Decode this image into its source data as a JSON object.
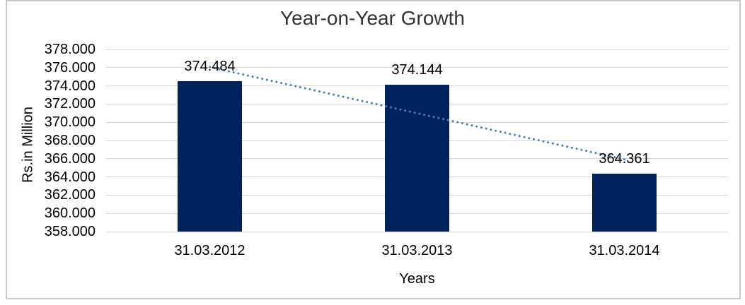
{
  "page": {
    "background": "#ffffff"
  },
  "chart_data": {
    "type": "bar",
    "title": "Year-on-Year Growth",
    "xlabel": "Years",
    "ylabel": "Rs.in Million",
    "categories": [
      "31.03.2012",
      "31.03.2013",
      "31.03.2014"
    ],
    "series": [
      {
        "name": "Rs.in Million",
        "values": [
          374.484,
          374.144,
          364.361
        ]
      }
    ],
    "data_labels": [
      "374.484",
      "374.144",
      "364.361"
    ],
    "yticks": [
      "378.000",
      "376.000",
      "374.000",
      "372.000",
      "370.000",
      "368.000",
      "366.000",
      "364.000",
      "362.000",
      "360.000",
      "358.000"
    ],
    "ylim": [
      358.0,
      378.0
    ],
    "ytick_step": 2.0,
    "grid": true,
    "legend_position": "none",
    "trendline": {
      "type": "linear",
      "style": "dotted",
      "endpoint_values": [
        376.06,
        365.93
      ]
    },
    "colors": {
      "bar_fill": "#02225e",
      "trendline": "#4a7ebc",
      "gridline": "#d9d9d9",
      "title_text": "#333333",
      "axis_text": "#000000",
      "frame_border": "#c9c9c9"
    }
  }
}
